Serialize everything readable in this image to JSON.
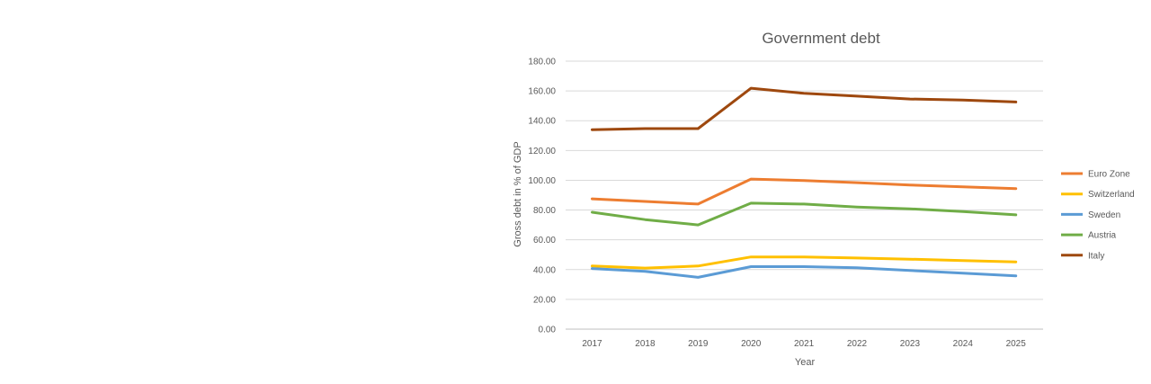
{
  "chart_data": {
    "type": "line",
    "title": "Government debt",
    "xlabel": "Year",
    "ylabel": "Gross debt in % of GDP",
    "categories": [
      "2017",
      "2018",
      "2019",
      "2020",
      "2021",
      "2022",
      "2023",
      "2024",
      "2025"
    ],
    "ylim": [
      0,
      180
    ],
    "yticks": [
      "0.00",
      "20.00",
      "40.00",
      "60.00",
      "80.00",
      "100.00",
      "120.00",
      "140.00",
      "160.00",
      "180.00"
    ],
    "grid": true,
    "legend_position": "right",
    "series": [
      {
        "name": "Euro Zone",
        "color": "#ED7D31",
        "values": [
          87.5,
          85.8,
          84.0,
          100.8,
          99.8,
          98.4,
          96.8,
          95.6,
          94.4
        ]
      },
      {
        "name": "Switzerland",
        "color": "#FFC000",
        "values": [
          42.4,
          41.0,
          42.4,
          48.5,
          48.5,
          47.8,
          47.0,
          46.0,
          45.2
        ]
      },
      {
        "name": "Sweden",
        "color": "#5B9BD5",
        "values": [
          40.7,
          38.8,
          34.8,
          42.0,
          42.0,
          41.2,
          39.4,
          37.6,
          35.8
        ]
      },
      {
        "name": "Austria",
        "color": "#70AD47",
        "values": [
          78.5,
          73.6,
          70.0,
          84.6,
          84.0,
          82.0,
          80.8,
          79.0,
          76.8
        ]
      },
      {
        "name": "Italy",
        "color": "#9E480E",
        "values": [
          134.0,
          134.7,
          134.7,
          161.8,
          158.4,
          156.5,
          154.6,
          153.9,
          152.6
        ]
      }
    ]
  }
}
